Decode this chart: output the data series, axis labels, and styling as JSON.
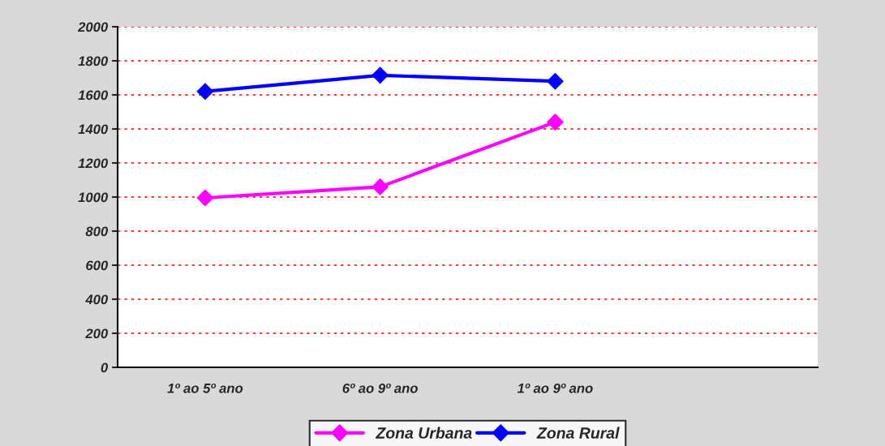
{
  "chart_data": {
    "type": "line",
    "categories": [
      "1º ao 5º ano",
      "6º ao 9º ano",
      "1º ao 9º ano",
      null
    ],
    "series": [
      {
        "name": "Zona Urbana",
        "color": "#ff00ff",
        "values": [
          995,
          1060,
          1440,
          null
        ]
      },
      {
        "name": "Zona Rural",
        "color": "#0000ff",
        "values": [
          1620,
          1715,
          1680,
          null
        ]
      }
    ],
    "ylim": [
      0,
      2000
    ],
    "yticks": [
      0,
      200,
      400,
      600,
      800,
      1000,
      1200,
      1400,
      1600,
      1800,
      2000
    ],
    "grid": "y",
    "legend": "bottom",
    "marker": "diamond",
    "line_style": "solid"
  }
}
